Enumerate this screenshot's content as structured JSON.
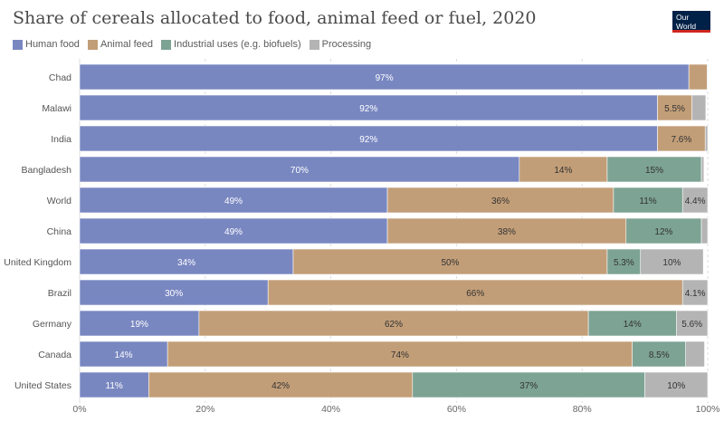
{
  "header": {
    "title": "Share of cereals allocated to food, animal feed or fuel, 2020",
    "logo_line1": "Our World",
    "logo_line2": "in Data"
  },
  "chart_data": {
    "type": "bar",
    "orientation": "horizontal",
    "stacked": true,
    "title": "Share of cereals allocated to food, animal feed or fuel, 2020",
    "categories": [
      "Chad",
      "Malawi",
      "India",
      "Bangladesh",
      "World",
      "China",
      "United Kingdom",
      "Brazil",
      "Germany",
      "Canada",
      "United States"
    ],
    "xlim": [
      0,
      100
    ],
    "x_ticks": [
      "0%",
      "20%",
      "40%",
      "60%",
      "80%",
      "100%"
    ],
    "grid": true,
    "legend_position": "top-left",
    "series": [
      {
        "name": "Human food",
        "color": "#7987c1",
        "values": [
          97,
          92,
          92,
          70,
          49,
          49,
          34,
          30,
          19,
          14,
          11
        ],
        "labels": [
          "97%",
          "92%",
          "92%",
          "70%",
          "49%",
          "49%",
          "34%",
          "30%",
          "19%",
          "14%",
          "11%"
        ]
      },
      {
        "name": "Animal feed",
        "color": "#c29e78",
        "values": [
          2.9,
          5.5,
          7.6,
          14,
          36,
          38,
          50,
          66,
          62,
          74,
          42
        ],
        "labels": [
          "",
          "5.5%",
          "7.6%",
          "14%",
          "36%",
          "38%",
          "50%",
          "66%",
          "62%",
          "74%",
          "42%"
        ]
      },
      {
        "name": "Industrial uses (e.g. biofuels)",
        "color": "#7da394",
        "values": [
          0,
          0,
          0,
          15,
          11,
          12,
          5.3,
          0,
          14,
          8.5,
          37
        ],
        "labels": [
          "",
          "",
          "",
          "15%",
          "11%",
          "12%",
          "5.3%",
          "",
          "14%",
          "8.5%",
          "37%"
        ]
      },
      {
        "name": "Processing",
        "color": "#b4b4b4",
        "values": [
          0.2,
          2.2,
          0.8,
          0.4,
          4.4,
          2,
          10,
          4.1,
          5.6,
          3,
          10
        ],
        "labels": [
          "",
          "",
          "",
          "",
          "4.4%",
          "",
          "10%",
          "4.1%",
          "5.6%",
          "",
          "10%"
        ]
      }
    ]
  }
}
